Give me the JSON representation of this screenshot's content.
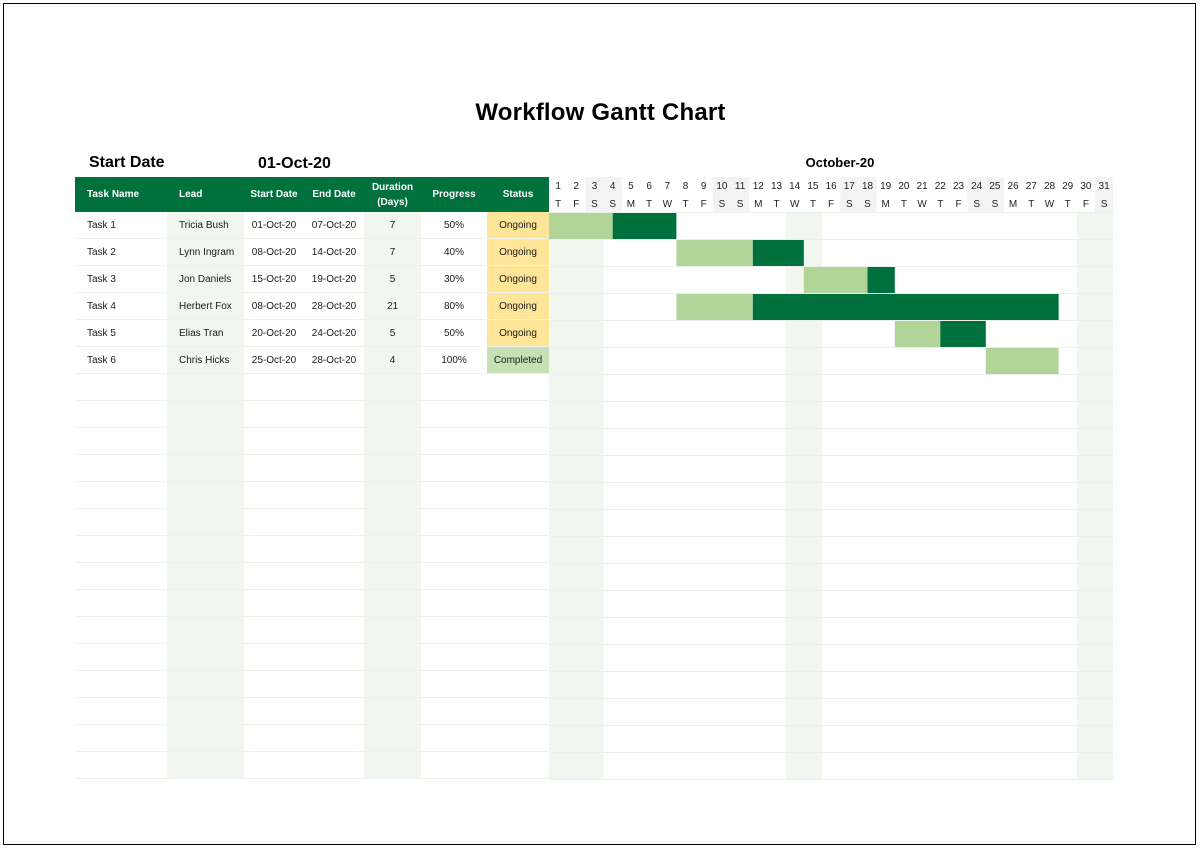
{
  "title": "Workflow Gantt Chart",
  "start_date_label": "Start Date",
  "start_date_value": "01-Oct-20",
  "month_label": "October-20",
  "columns": {
    "task": "Task Name",
    "lead": "Lead",
    "start": "Start Date",
    "end": "End Date",
    "duration_line1": "Duration",
    "duration_line2": "(Days)",
    "progress": "Progress",
    "status": "Status"
  },
  "tasks": [
    {
      "name": "Task 1",
      "lead": "Tricia Bush",
      "start": "01-Oct-20",
      "end": "07-Oct-20",
      "duration": "7",
      "progress": "50%",
      "status": "Ongoing"
    },
    {
      "name": "Task 2",
      "lead": "Lynn Ingram",
      "start": "08-Oct-20",
      "end": "14-Oct-20",
      "duration": "7",
      "progress": "40%",
      "status": "Ongoing"
    },
    {
      "name": "Task 3",
      "lead": "Jon Daniels",
      "start": "15-Oct-20",
      "end": "19-Oct-20",
      "duration": "5",
      "progress": "30%",
      "status": "Ongoing"
    },
    {
      "name": "Task 4",
      "lead": "Herbert Fox",
      "start": "08-Oct-20",
      "end": "28-Oct-20",
      "duration": "21",
      "progress": "80%",
      "status": "Ongoing"
    },
    {
      "name": "Task 5",
      "lead": "Elias Tran",
      "start": "20-Oct-20",
      "end": "24-Oct-20",
      "duration": "5",
      "progress": "50%",
      "status": "Ongoing"
    },
    {
      "name": "Task 6",
      "lead": "Chris Hicks",
      "start": "25-Oct-20",
      "end": "28-Oct-20",
      "duration": "4",
      "progress": "100%",
      "status": "Completed"
    }
  ],
  "empty_rows": 15,
  "days": [
    "1",
    "2",
    "3",
    "4",
    "5",
    "6",
    "7",
    "8",
    "9",
    "10",
    "11",
    "12",
    "13",
    "14",
    "15",
    "16",
    "17",
    "18",
    "19",
    "20",
    "21",
    "22",
    "23",
    "24",
    "25",
    "26",
    "27",
    "28",
    "29",
    "30",
    "31"
  ],
  "weekdays": [
    "T",
    "F",
    "S",
    "S",
    "M",
    "T",
    "W",
    "T",
    "F",
    "S",
    "S",
    "M",
    "T",
    "W",
    "T",
    "F",
    "S",
    "S",
    "M",
    "T",
    "W",
    "T",
    "F",
    "S",
    "S",
    "M",
    "T",
    "W",
    "T",
    "F",
    "S"
  ],
  "colors": {
    "header_green": "#00703c",
    "bar_done": "#00703c",
    "bar_remaining": "#b1d499",
    "column_shade": "#f1f6ee",
    "status_ongoing": "#ffe598",
    "status_completed": "#c7e0b4"
  },
  "chart_data": {
    "type": "gantt",
    "x_unit": "day of October 2020",
    "tasks": [
      {
        "name": "Task 1",
        "start_day": 1,
        "end_day": 7,
        "progress": 0.5
      },
      {
        "name": "Task 2",
        "start_day": 8,
        "end_day": 14,
        "progress": 0.4
      },
      {
        "name": "Task 3",
        "start_day": 15,
        "end_day": 19,
        "progress": 0.3
      },
      {
        "name": "Task 4",
        "start_day": 8,
        "end_day": 28,
        "progress": 0.8
      },
      {
        "name": "Task 5",
        "start_day": 20,
        "end_day": 24,
        "progress": 0.5
      },
      {
        "name": "Task 6",
        "start_day": 25,
        "end_day": 28,
        "progress": 1.0
      }
    ]
  }
}
